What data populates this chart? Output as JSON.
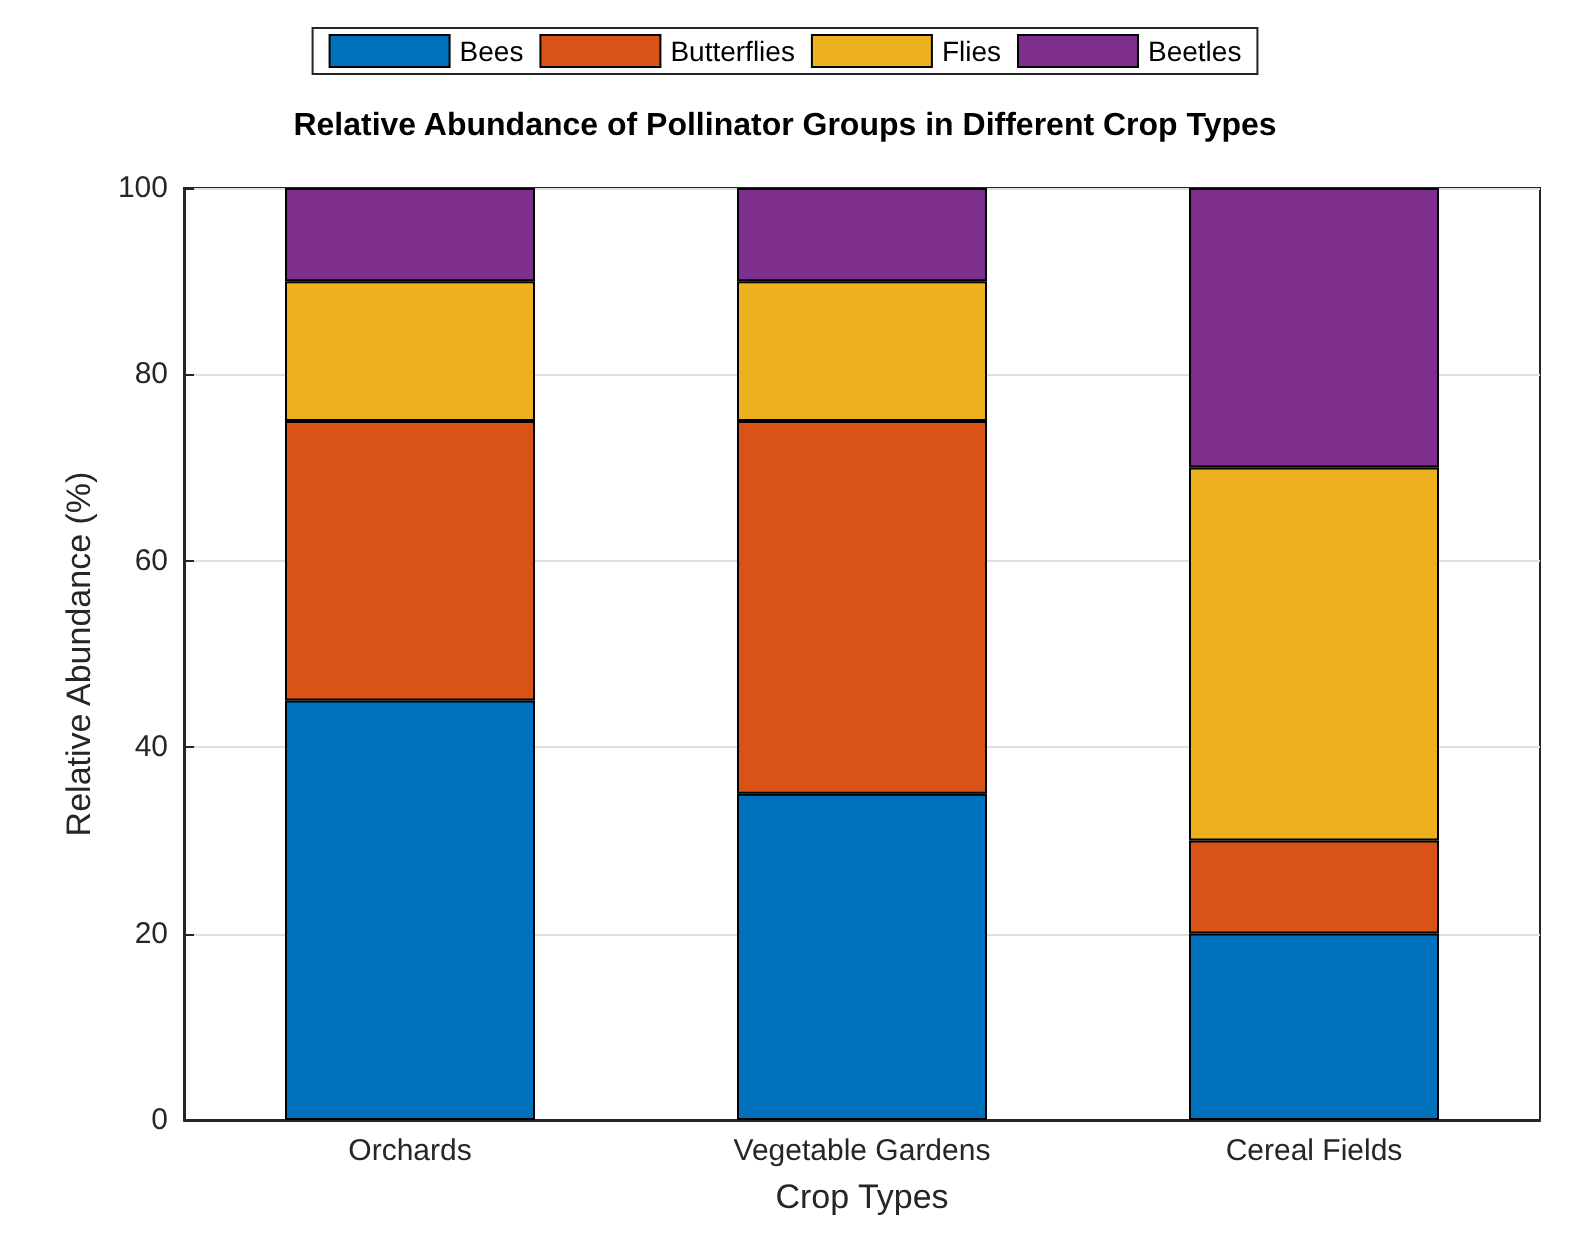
{
  "chart_data": {
    "type": "bar",
    "stacked": true,
    "title": "Relative Abundance of Pollinator Groups in Different Crop Types",
    "xlabel": "Crop Types",
    "ylabel": "Relative Abundance (%)",
    "categories": [
      "Orchards",
      "Vegetable Gardens",
      "Cereal Fields"
    ],
    "series": [
      {
        "name": "Bees",
        "color": "#0072bd",
        "values": [
          45,
          35,
          20
        ]
      },
      {
        "name": "Butterflies",
        "color": "#d95319",
        "values": [
          30,
          40,
          10
        ]
      },
      {
        "name": "Flies",
        "color": "#edb120",
        "values": [
          15,
          15,
          40
        ]
      },
      {
        "name": "Beetles",
        "color": "#7e2f8e",
        "values": [
          10,
          10,
          30
        ]
      }
    ],
    "ylim": [
      0,
      100
    ],
    "yticks": [
      0,
      20,
      40,
      60,
      80,
      100
    ],
    "grid": "y",
    "legend": "top"
  }
}
